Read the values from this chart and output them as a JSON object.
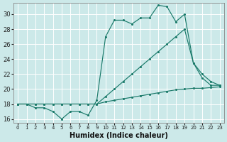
{
  "title": "",
  "xlabel": "Humidex (Indice chaleur)",
  "ylabel": "",
  "bg_color": "#cce9e9",
  "line_color": "#1a7a6a",
  "grid_color": "#b0d0d0",
  "xlim": [
    -0.5,
    23.5
  ],
  "ylim": [
    15.5,
    31.5
  ],
  "xticks": [
    0,
    1,
    2,
    3,
    4,
    5,
    6,
    7,
    8,
    9,
    10,
    11,
    12,
    13,
    14,
    15,
    16,
    17,
    18,
    19,
    20,
    21,
    22,
    23
  ],
  "yticks": [
    16,
    18,
    20,
    22,
    24,
    26,
    28,
    30
  ],
  "line1_x": [
    0,
    1,
    2,
    3,
    4,
    5,
    6,
    7,
    8,
    9,
    10,
    11,
    12,
    13,
    14,
    15,
    16,
    17,
    18,
    19,
    20,
    21,
    22,
    23
  ],
  "line1_y": [
    18,
    18,
    18,
    18,
    18,
    18,
    18,
    18,
    18,
    18,
    18.3,
    18.5,
    18.7,
    18.9,
    19.1,
    19.3,
    19.5,
    19.7,
    19.9,
    20.0,
    20.1,
    20.1,
    20.2,
    20.3
  ],
  "line2_x": [
    0,
    1,
    2,
    3,
    4,
    5,
    6,
    7,
    8,
    9,
    10,
    11,
    12,
    13,
    14,
    15,
    16,
    17,
    18,
    19,
    20,
    21,
    22,
    23
  ],
  "line2_y": [
    18,
    18,
    18,
    18,
    18,
    18,
    18,
    18,
    18,
    18,
    19,
    20,
    21,
    22,
    23,
    24,
    25,
    26,
    27,
    28,
    23.5,
    22,
    21,
    20.5
  ],
  "line3_x": [
    0,
    1,
    2,
    3,
    4,
    5,
    6,
    7,
    8,
    9,
    10,
    11,
    12,
    13,
    14,
    15,
    16,
    17,
    18,
    19,
    20,
    21,
    22,
    23
  ],
  "line3_y": [
    18,
    18,
    17.5,
    17.5,
    17,
    16,
    17,
    17,
    16.5,
    18.5,
    27,
    29.2,
    29.2,
    28.7,
    29.5,
    29.5,
    31.2,
    31,
    29,
    30,
    23.5,
    21.5,
    20.5,
    20.5
  ]
}
